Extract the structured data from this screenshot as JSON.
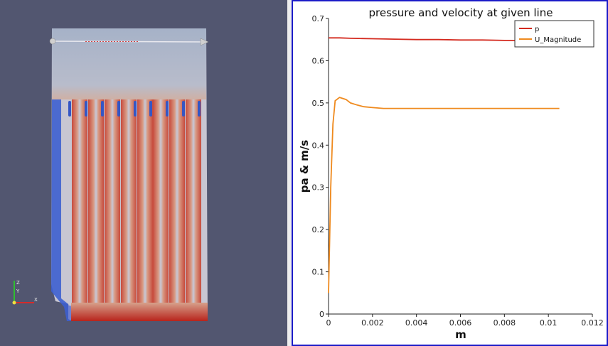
{
  "render_view": {
    "colors": {
      "background": "#525670",
      "fluid_low": "#3b5bd0",
      "fluid_mid": "#c9cbd8",
      "fluid_high": "#c2392f",
      "top_region": "#a9b4c9"
    },
    "axes_labels": {
      "x": "X",
      "y": "Y",
      "z": "Z"
    }
  },
  "chart_data": {
    "type": "line",
    "title": "pressure and velocity at given line",
    "xlabel": "m",
    "ylabel": "pa & m/s",
    "xlim": [
      0,
      0.012
    ],
    "ylim": [
      0,
      0.7
    ],
    "xticks": [
      "0",
      "0.002",
      "0.004",
      "0.006",
      "0.008",
      "0.01",
      "0.012"
    ],
    "yticks": [
      "0",
      "0.1",
      "0.2",
      "0.3",
      "0.4",
      "0.5",
      "0.6",
      "0.7"
    ],
    "grid": false,
    "legend_position": "top-right",
    "series": [
      {
        "name": "p",
        "color": "#d42a1f",
        "x": [
          0,
          0.0005,
          0.001,
          0.002,
          0.003,
          0.004,
          0.005,
          0.006,
          0.007,
          0.008,
          0.009,
          0.0105
        ],
        "y": [
          0.654,
          0.654,
          0.653,
          0.652,
          0.651,
          0.65,
          0.65,
          0.649,
          0.649,
          0.648,
          0.647,
          0.646
        ]
      },
      {
        "name": "U_Magnitude",
        "color": "#ef8a1e",
        "x": [
          0,
          0.0001,
          0.0002,
          0.0003,
          0.0005,
          0.0008,
          0.001,
          0.0013,
          0.0016,
          0.002,
          0.0025,
          0.003,
          0.004,
          0.006,
          0.008,
          0.0105
        ],
        "y": [
          0.05,
          0.3,
          0.45,
          0.505,
          0.513,
          0.508,
          0.5,
          0.495,
          0.491,
          0.489,
          0.487,
          0.487,
          0.487,
          0.487,
          0.487,
          0.487
        ]
      }
    ]
  }
}
